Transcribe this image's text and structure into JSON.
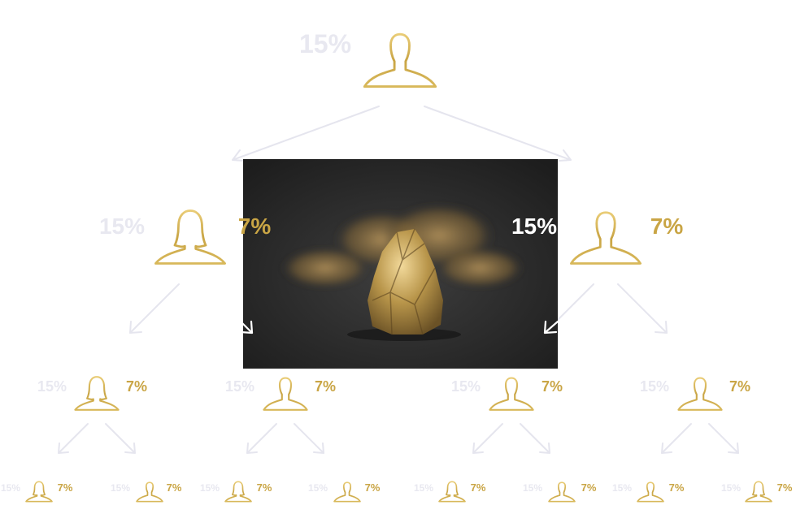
{
  "nodes": [
    {
      "id": "root",
      "left": "15%",
      "right": ""
    },
    {
      "id": "l1-left",
      "left": "15%",
      "right": "7%"
    },
    {
      "id": "l1-right",
      "left": "15%",
      "right": "7%"
    },
    {
      "id": "l2-1",
      "left": "15%",
      "right": "7%"
    },
    {
      "id": "l2-2",
      "left": "15%",
      "right": "7%"
    },
    {
      "id": "l2-3",
      "left": "15%",
      "right": "7%"
    },
    {
      "id": "l2-4",
      "left": "15%",
      "right": "7%"
    },
    {
      "id": "l3-1",
      "left": "15%",
      "right": "7%"
    },
    {
      "id": "l3-2",
      "left": "15%",
      "right": "7%"
    },
    {
      "id": "l3-3",
      "left": "15%",
      "right": "7%"
    },
    {
      "id": "l3-4",
      "left": "15%",
      "right": "7%"
    },
    {
      "id": "l3-5",
      "left": "15%",
      "right": "7%"
    },
    {
      "id": "l3-6",
      "left": "15%",
      "right": "7%"
    },
    {
      "id": "l3-7",
      "left": "15%",
      "right": "7%"
    },
    {
      "id": "l3-8",
      "left": "15%",
      "right": "7%"
    }
  ],
  "image": {
    "subject": "gold nugget photograph"
  },
  "colors": {
    "gold": "#c9a545",
    "pale": "#e8e8f0",
    "photo_bg": "#2b2b2b"
  }
}
